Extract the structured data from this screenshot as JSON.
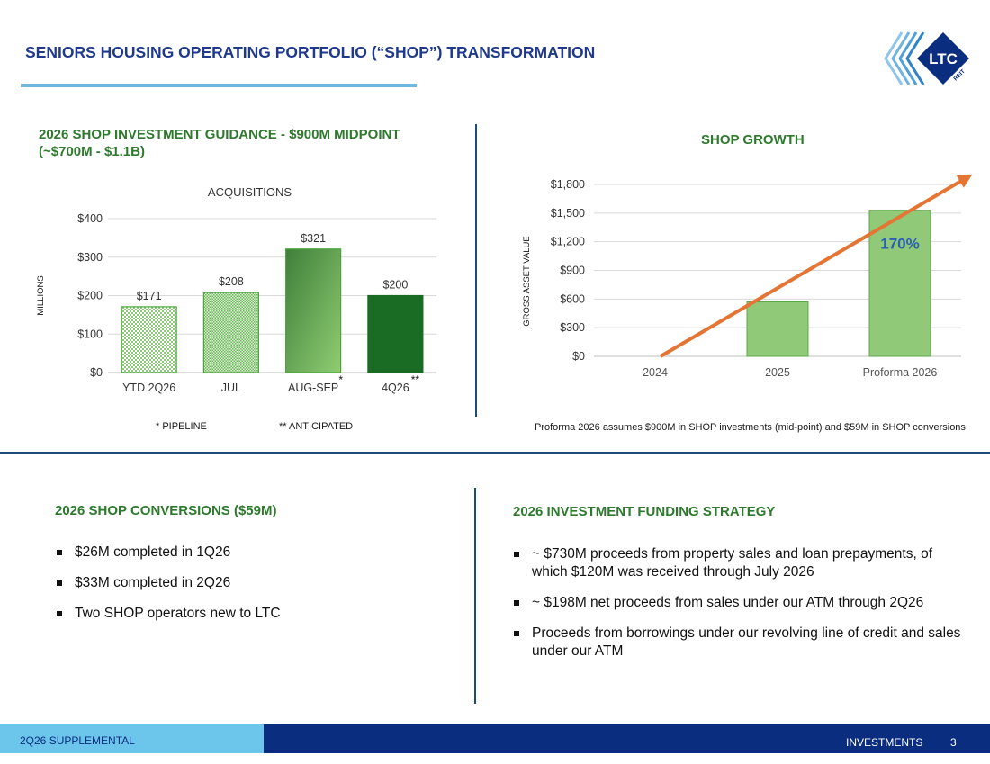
{
  "header": {
    "title": "SENIORS HOUSING OPERATING PORTFOLIO (“SHOP”) TRANSFORMATION",
    "logo_text": "LTC",
    "logo_subtext": "REIT"
  },
  "guidance": {
    "title_line1": "2026 SHOP INVESTMENT GUIDANCE - $900M MIDPOINT",
    "title_line2": "(~$700M - $1.1B)",
    "footnote_pipeline": "* PIPELINE",
    "footnote_anticipated": "** ANTICIPATED"
  },
  "growth": {
    "title": "SHOP GROWTH",
    "footnote": "Proforma 2026 assumes $900M in SHOP investments (mid-point) and $59M in SHOP conversions",
    "arrow_label": "170%"
  },
  "chart_data": [
    {
      "type": "bar",
      "title": "ACQUISITIONS",
      "ylabel": "MILLIONS",
      "xlabel": "",
      "categories": [
        "YTD 2Q26",
        "JUL",
        "AUG-SEP",
        "4Q26"
      ],
      "category_markers": [
        "",
        "",
        "*",
        "**"
      ],
      "values": [
        171,
        208,
        321,
        200
      ],
      "data_labels": [
        "$171",
        "$208",
        "$321",
        "$200"
      ],
      "yticks": [
        "$0",
        "$100",
        "$200",
        "$300",
        "$400"
      ],
      "ylim": [
        0,
        400
      ],
      "grid": true,
      "legend": "none"
    },
    {
      "type": "bar",
      "title": "",
      "ylabel": "GROSS ASSET VALUE",
      "xlabel": "",
      "categories": [
        "2024",
        "2025",
        "Proforma 2026"
      ],
      "values": [
        0,
        570,
        1530
      ],
      "yticks": [
        "$0",
        "$300",
        "$600",
        "$900",
        "$1,200",
        "$1,500",
        "$1,800"
      ],
      "ylim": [
        0,
        1800
      ],
      "grid": true,
      "legend": "none"
    }
  ],
  "conversions": {
    "title": "2026 SHOP CONVERSIONS ($59M)",
    "items": [
      "$26M completed in 1Q26",
      "$33M completed in 2Q26",
      "Two SHOP operators new to LTC"
    ]
  },
  "funding": {
    "title": "2026 INVESTMENT FUNDING STRATEGY",
    "items": [
      "~ $730M proceeds from property sales and loan prepayments, of which $120M was received through July 2026",
      "~ $198M net proceeds from sales under our ATM through 2Q26",
      "Proceeds from borrowings under our revolving line of credit and sales under our ATM"
    ]
  },
  "footer": {
    "left": "2Q26 SUPPLEMENTAL",
    "section": "INVESTMENTS",
    "page": "3"
  },
  "colors": {
    "title_blue": "#1f3a8c",
    "section_green": "#2d7a2d",
    "bar_dark_green": "#1a6b24",
    "bar_light_green": "#90c978",
    "arrow_orange": "#e57535",
    "footer_navy": "#0a2d80",
    "footer_sky": "#6cc6ec"
  }
}
